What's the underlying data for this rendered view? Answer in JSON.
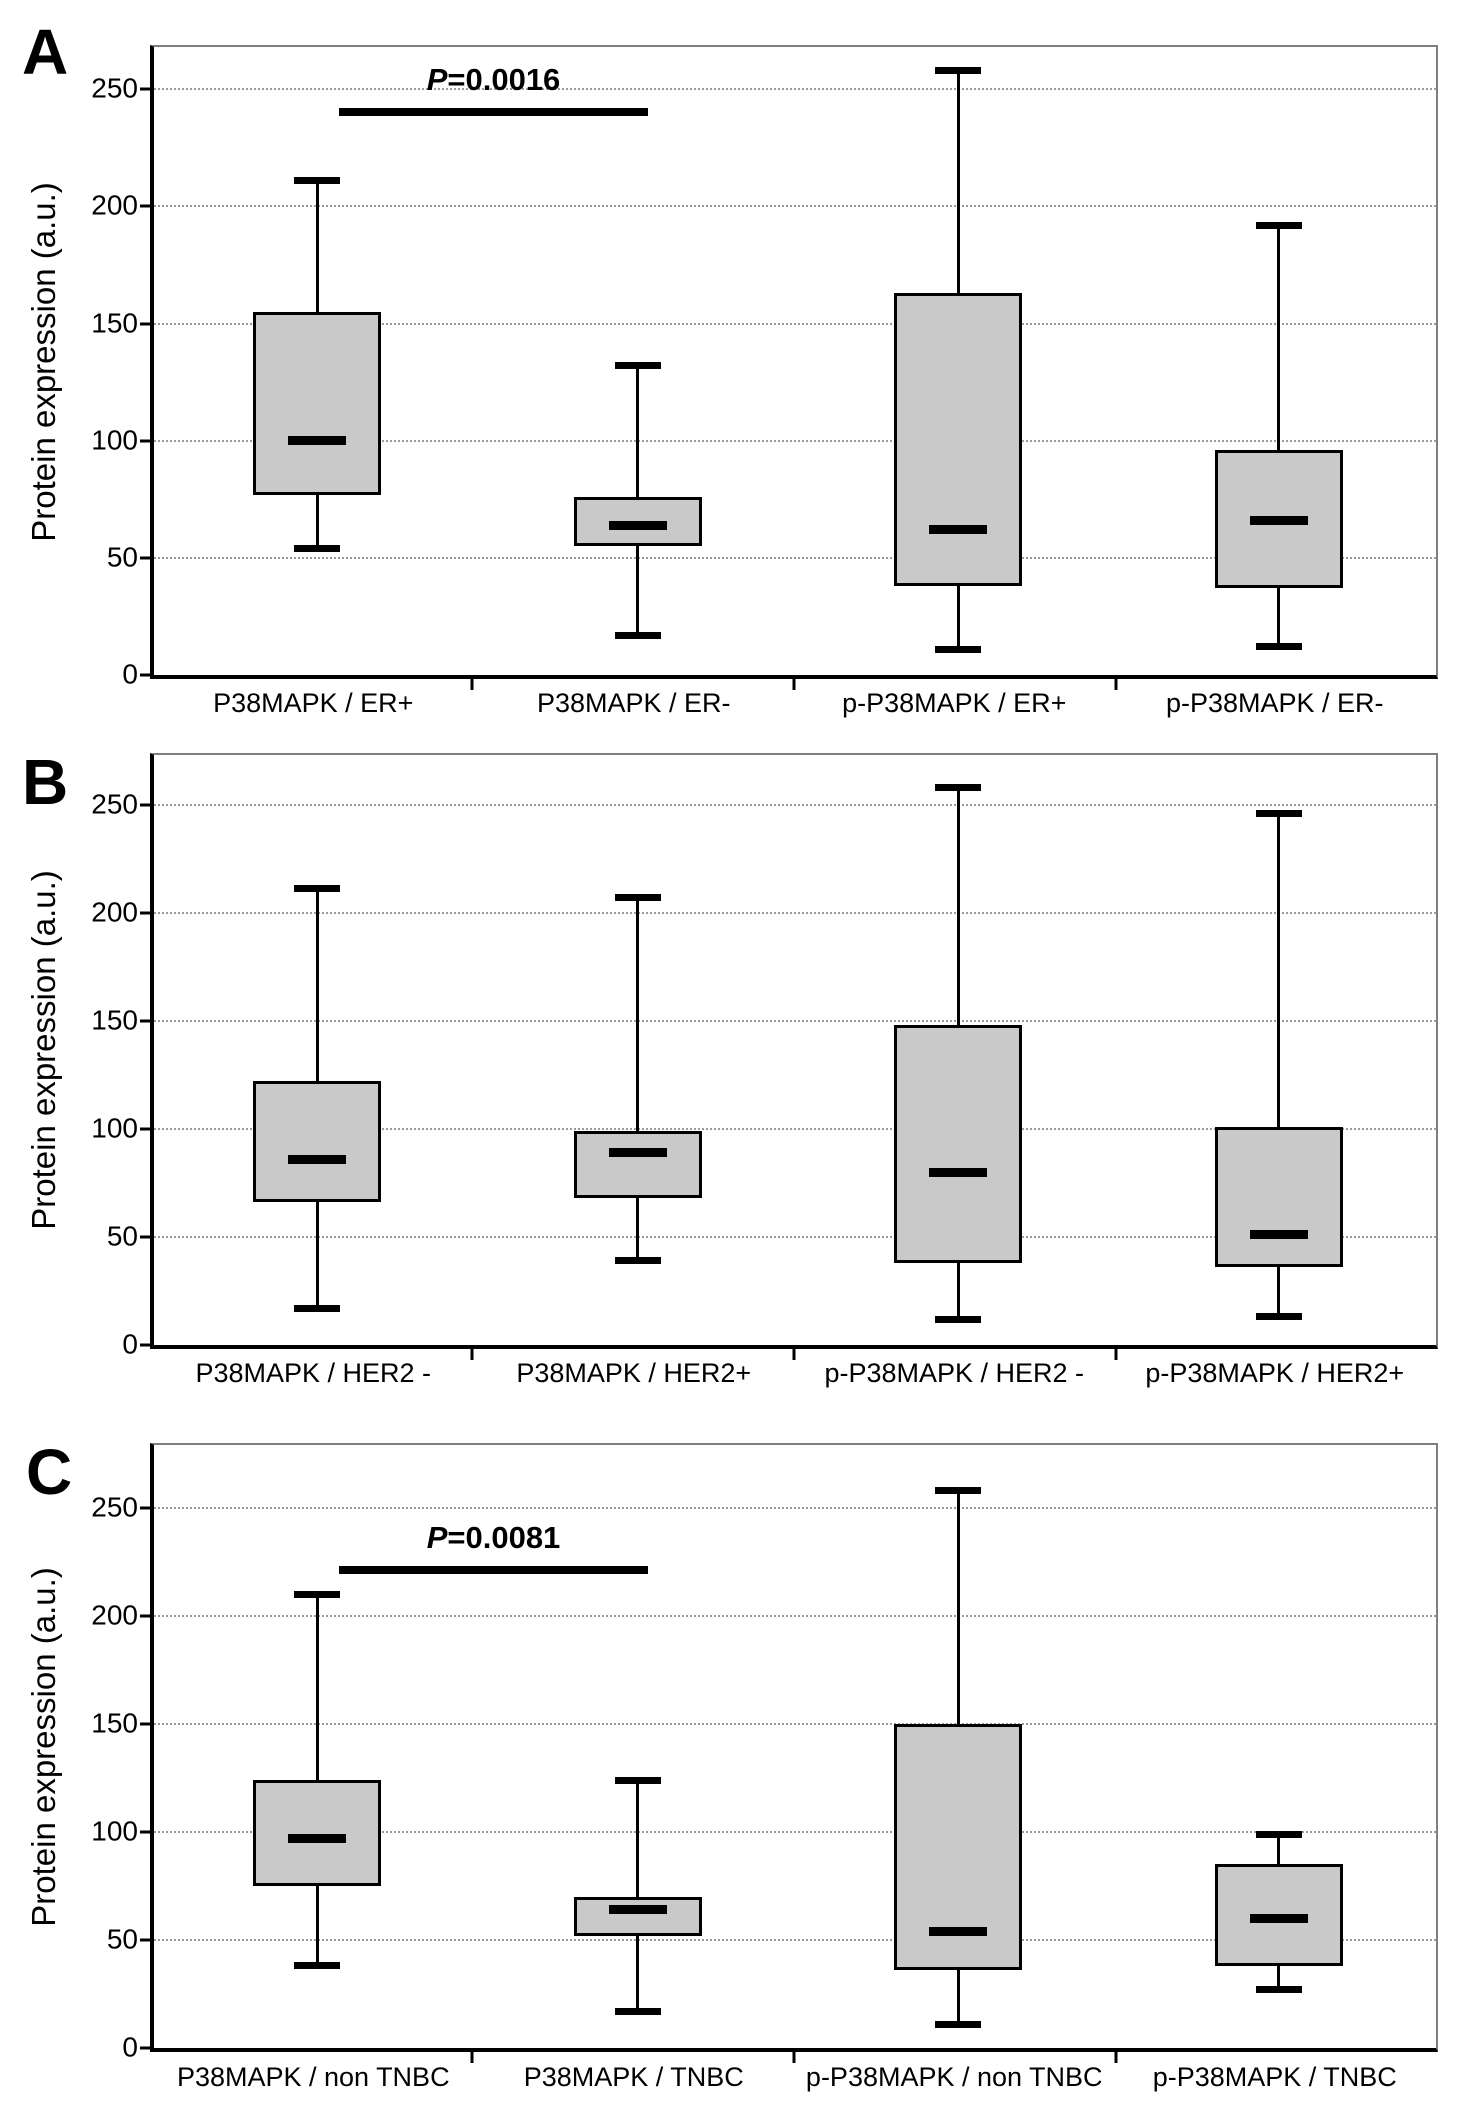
{
  "figure": {
    "background": "#ffffff",
    "colors": {
      "box_fill": "#c9c9c9",
      "line": "#000000",
      "gridline": "#9a9a9a",
      "frame": "#7f7f7f"
    }
  },
  "chart_data": [
    {
      "type": "box",
      "panel_label": "A",
      "ylabel": "Protein expression (a.u.)",
      "ylim": [
        0,
        268
      ],
      "yticks": [
        0,
        50,
        100,
        150,
        200,
        250
      ],
      "grid": "horizontal-dotted",
      "categories": [
        "P38MAPK / ER+",
        "P38MAPK / ER-",
        "p-P38MAPK / ER+",
        "p-P38MAPK / ER-"
      ],
      "boxes": [
        {
          "min": 54,
          "q1": 77,
          "median": 100,
          "q3": 155,
          "max": 211
        },
        {
          "min": 17,
          "q1": 55,
          "median": 64,
          "q3": 76,
          "max": 132
        },
        {
          "min": 11,
          "q1": 38,
          "median": 62,
          "q3": 163,
          "max": 258
        },
        {
          "min": 12,
          "q1": 37,
          "median": 66,
          "q3": 96,
          "max": 192
        }
      ],
      "annotation": {
        "label_p": "P",
        "label_rest": "=0.0016",
        "between": [
          0,
          1
        ],
        "bar_y": 242
      }
    },
    {
      "type": "box",
      "panel_label": "B",
      "ylabel": "Protein expression (a.u.)",
      "ylim": [
        0,
        273
      ],
      "yticks": [
        0,
        50,
        100,
        150,
        200,
        250
      ],
      "grid": "horizontal-dotted",
      "categories": [
        "P38MAPK / HER2 -",
        "P38MAPK / HER2+",
        "p-P38MAPK / HER2 -",
        "p-P38MAPK / HER2+"
      ],
      "boxes": [
        {
          "min": 17,
          "q1": 66,
          "median": 86,
          "q3": 122,
          "max": 211
        },
        {
          "min": 39,
          "q1": 68,
          "median": 89,
          "q3": 99,
          "max": 207
        },
        {
          "min": 12,
          "q1": 38,
          "median": 80,
          "q3": 148,
          "max": 258
        },
        {
          "min": 13,
          "q1": 36,
          "median": 51,
          "q3": 101,
          "max": 246
        }
      ],
      "annotation": null
    },
    {
      "type": "box",
      "panel_label": "C",
      "ylabel": "Protein expression (a.u.)",
      "ylim": [
        0,
        279
      ],
      "yticks": [
        0,
        50,
        100,
        150,
        200,
        250
      ],
      "grid": "horizontal-dotted",
      "categories": [
        "P38MAPK / non TNBC",
        "P38MAPK / TNBC",
        "p-P38MAPK / non TNBC",
        "p-P38MAPK / TNBC"
      ],
      "boxes": [
        {
          "min": 38,
          "q1": 75,
          "median": 97,
          "q3": 124,
          "max": 210
        },
        {
          "min": 17,
          "q1": 52,
          "median": 64,
          "q3": 70,
          "max": 124
        },
        {
          "min": 11,
          "q1": 36,
          "median": 54,
          "q3": 150,
          "max": 258
        },
        {
          "min": 27,
          "q1": 38,
          "median": 60,
          "q3": 85,
          "max": 99
        }
      ],
      "annotation": {
        "label_p": "P",
        "label_rest": "=0.0081",
        "between": [
          0,
          1
        ],
        "bar_y": 223
      }
    }
  ]
}
